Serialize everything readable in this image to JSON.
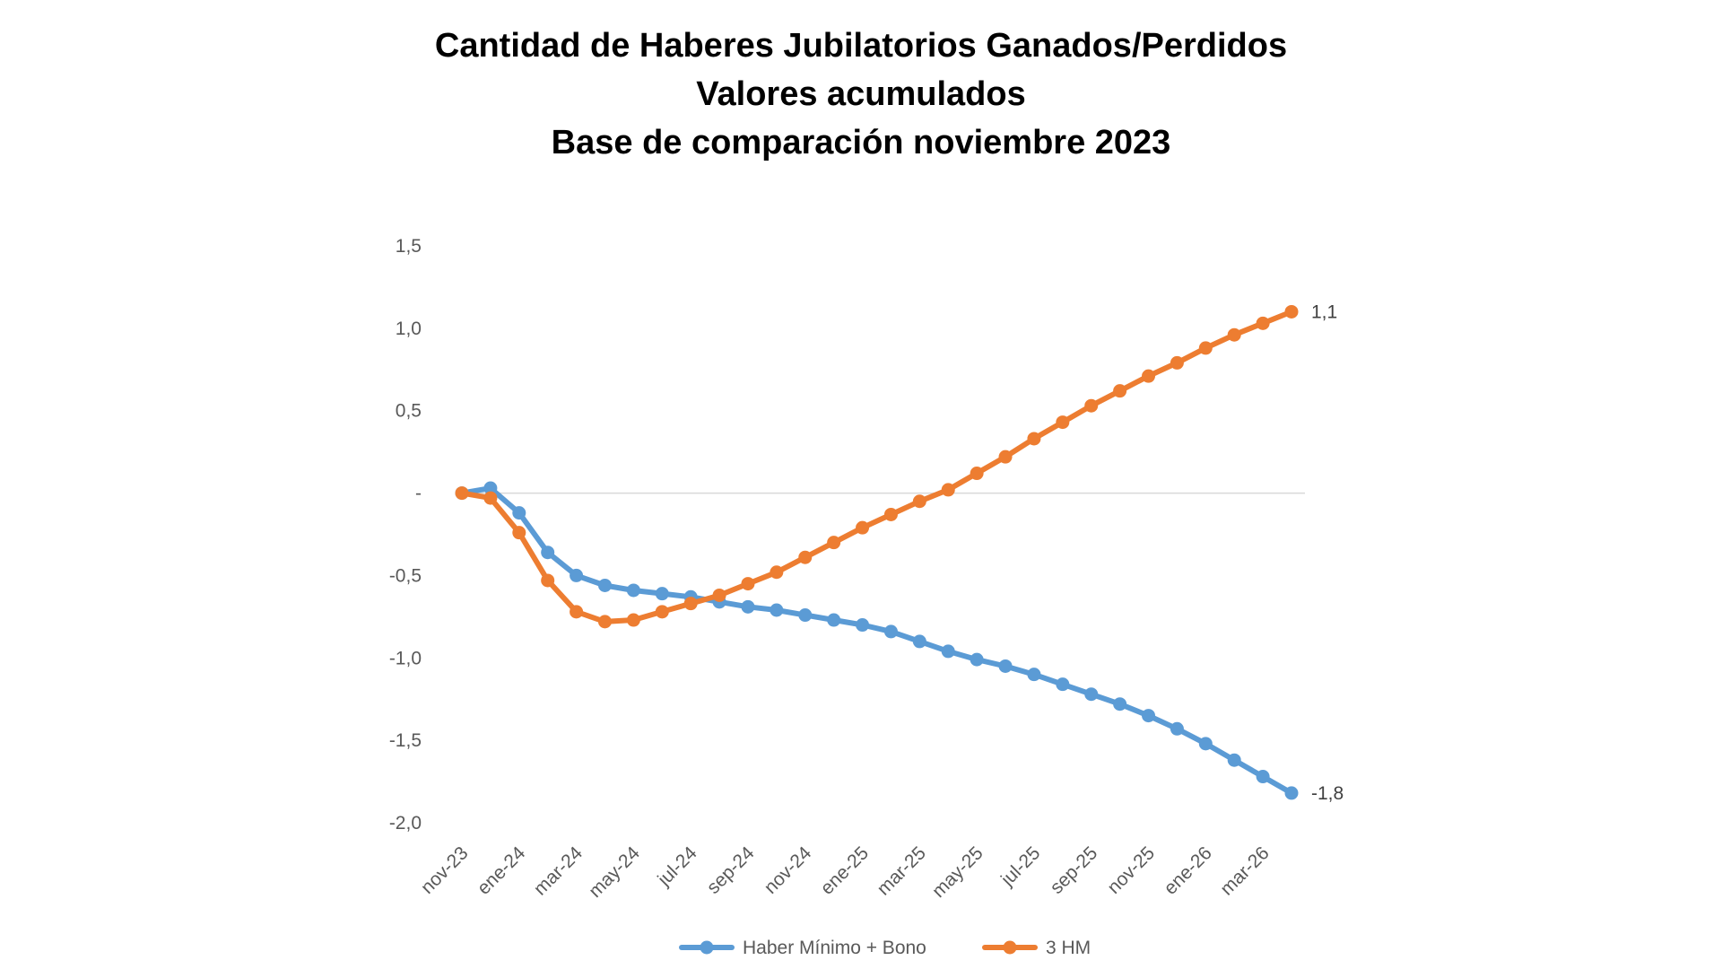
{
  "chart_data": {
    "type": "line",
    "title_lines": [
      "Cantidad de Haberes Jubilatorios Ganados/Perdidos",
      "Valores acumulados",
      "Base de comparación noviembre 2023"
    ],
    "xlabel": "",
    "ylabel": "",
    "ylim": [
      -2.0,
      1.5
    ],
    "yticks": [
      {
        "value": 1.5,
        "label": "1,5"
      },
      {
        "value": 1.0,
        "label": "1,0"
      },
      {
        "value": 0.5,
        "label": "0,5"
      },
      {
        "value": 0,
        "label": "-"
      },
      {
        "value": -0.5,
        "label": "-0,5"
      },
      {
        "value": -1.0,
        "label": "-1,0"
      },
      {
        "value": -1.5,
        "label": "-1,5"
      },
      {
        "value": -2.0,
        "label": "-2,0"
      }
    ],
    "x": [
      "nov-23",
      "dic-23",
      "ene-24",
      "feb-24",
      "mar-24",
      "abr-24",
      "may-24",
      "jun-24",
      "jul-24",
      "ago-24",
      "sep-24",
      "oct-24",
      "nov-24",
      "dic-24",
      "ene-25",
      "feb-25",
      "mar-25",
      "abr-25",
      "may-25",
      "jun-25",
      "jul-25",
      "ago-25",
      "sep-25",
      "oct-25",
      "nov-25",
      "dic-25",
      "ene-26",
      "feb-26",
      "mar-26",
      "abr-26"
    ],
    "xtick_labels": [
      "nov-23",
      "ene-24",
      "mar-24",
      "may-24",
      "jul-24",
      "sep-24",
      "nov-24",
      "ene-25",
      "mar-25",
      "may-25",
      "jul-25",
      "sep-25",
      "nov-25",
      "ene-26",
      "mar-26"
    ],
    "grid": false,
    "zero_line": true,
    "legend_position": "bottom",
    "series": [
      {
        "name": "Haber Mínimo + Bono",
        "color": "#5B9BD5",
        "values": [
          0.0,
          0.03,
          -0.12,
          -0.36,
          -0.5,
          -0.56,
          -0.59,
          -0.61,
          -0.63,
          -0.66,
          -0.69,
          -0.71,
          -0.74,
          -0.77,
          -0.8,
          -0.84,
          -0.9,
          -0.96,
          -1.01,
          -1.05,
          -1.1,
          -1.16,
          -1.22,
          -1.28,
          -1.35,
          -1.43,
          -1.52,
          -1.62,
          -1.72,
          -1.82
        ],
        "end_label": "-1,8"
      },
      {
        "name": "3 HM",
        "color": "#ED7D31",
        "values": [
          0.0,
          -0.03,
          -0.24,
          -0.53,
          -0.72,
          -0.78,
          -0.77,
          -0.72,
          -0.67,
          -0.62,
          -0.55,
          -0.48,
          -0.39,
          -0.3,
          -0.21,
          -0.13,
          -0.05,
          0.02,
          0.12,
          0.22,
          0.33,
          0.43,
          0.53,
          0.62,
          0.71,
          0.79,
          0.88,
          0.96,
          1.03,
          1.1
        ],
        "end_label": "1,1"
      }
    ]
  }
}
